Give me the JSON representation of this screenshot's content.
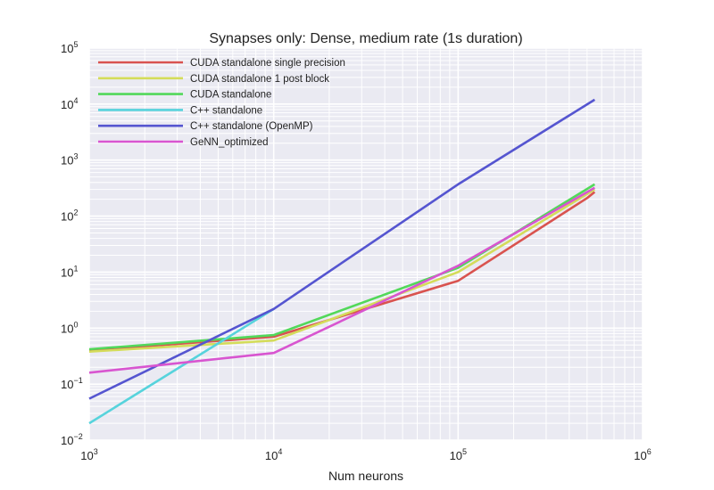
{
  "chart_data": {
    "type": "line",
    "title": "Synapses only: Dense, medium rate (1s duration)",
    "xlabel": "Num neurons",
    "ylabel": "",
    "xscale": "log",
    "yscale": "log",
    "xlim": [
      1000,
      1000000
    ],
    "ylim": [
      0.01,
      100000
    ],
    "grid": true,
    "legend_position": "top-left",
    "x_tick_exponents": [
      3,
      4,
      5,
      6
    ],
    "y_tick_exponents": [
      -2,
      -1,
      0,
      1,
      2,
      3,
      4,
      5
    ],
    "series": [
      {
        "name": "CUDA standalone single precision",
        "color": "#d9534f",
        "x": [
          1000,
          10000,
          100000,
          500000,
          550000
        ],
        "y": [
          0.4,
          0.7,
          7,
          210,
          270
        ]
      },
      {
        "name": "CUDA standalone 1 post block",
        "color": "#d4dc5a",
        "x": [
          1000,
          10000,
          100000,
          550000
        ],
        "y": [
          0.38,
          0.6,
          10,
          300
        ]
      },
      {
        "name": "CUDA standalone",
        "color": "#52d85a",
        "x": [
          1000,
          10000,
          100000,
          550000
        ],
        "y": [
          0.42,
          0.75,
          12,
          370
        ]
      },
      {
        "name": "C++ standalone",
        "color": "#57d3dc",
        "x": [
          1000,
          10000
        ],
        "y": [
          0.02,
          2.2
        ]
      },
      {
        "name": "C++ standalone (OpenMP)",
        "color": "#5555d0",
        "x": [
          1000,
          10000,
          100000,
          550000
        ],
        "y": [
          0.055,
          2.2,
          370,
          12000
        ]
      },
      {
        "name": "GeNN_optimized",
        "color": "#d855d0",
        "x": [
          1000,
          10000,
          100000,
          550000
        ],
        "y": [
          0.16,
          0.36,
          13,
          320
        ]
      }
    ]
  }
}
